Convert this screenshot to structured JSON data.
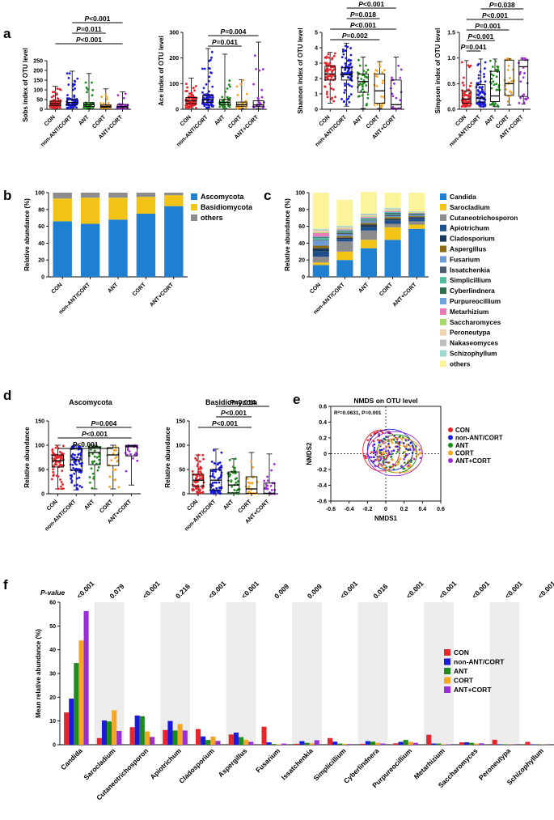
{
  "colors": {
    "CON": "#e8252a",
    "non-ANT/CORT": "#1a1adb",
    "ANT": "#1f8b1f",
    "CORT": "#f5a623",
    "ANT+CORT": "#9b2fd6"
  },
  "groups": [
    "CON",
    "non-ANT/CORT",
    "ANT",
    "CORT",
    "ANT+CORT"
  ],
  "panel_labels": {
    "a": "a",
    "b": "b",
    "c": "c",
    "d": "d",
    "e": "e",
    "f": "f"
  },
  "chart_data": [
    {
      "id": "a1",
      "type": "box",
      "ylabel": "Sobs index of OTU level",
      "ylim": [
        0,
        250
      ],
      "yticks": [
        "0",
        "50",
        "100",
        "150",
        "200",
        "250"
      ],
      "boxes": [
        {
          "min": 3,
          "q1": 18,
          "med": 28,
          "q3": 42,
          "max": 118
        },
        {
          "min": 5,
          "q1": 22,
          "med": 35,
          "q3": 50,
          "max": 196
        },
        {
          "min": 3,
          "q1": 14,
          "med": 23,
          "q3": 34,
          "max": 184
        },
        {
          "min": 3,
          "q1": 10,
          "med": 15,
          "q3": 22,
          "max": 105
        },
        {
          "min": 2,
          "q1": 8,
          "med": 14,
          "q3": 25,
          "max": 90
        }
      ],
      "sig": [
        {
          "text": "P<0.001",
          "from": 1,
          "to": 4
        },
        {
          "text": "P=0.011",
          "from": 1,
          "to": 3
        },
        {
          "text": "P<0.001",
          "from": 0,
          "to": 4
        }
      ]
    },
    {
      "id": "a2",
      "type": "box",
      "ylabel": "Ace index of OTU level",
      "ylim": [
        0,
        300
      ],
      "yticks": [
        "0",
        "100",
        "200",
        "300"
      ],
      "boxes": [
        {
          "min": 5,
          "q1": 22,
          "med": 33,
          "q3": 46,
          "max": 122
        },
        {
          "min": 5,
          "q1": 26,
          "med": 37,
          "q3": 55,
          "max": 237
        },
        {
          "min": 4,
          "q1": 17,
          "med": 27,
          "q3": 38,
          "max": 215
        },
        {
          "min": 3,
          "q1": 12,
          "med": 18,
          "q3": 28,
          "max": 115
        },
        {
          "min": 2,
          "q1": 10,
          "med": 17,
          "q3": 33,
          "max": 262
        }
      ],
      "sig": [
        {
          "text": "P=0.004",
          "from": 1,
          "to": 4
        },
        {
          "text": "P=0.041",
          "from": 1,
          "to": 3
        }
      ]
    },
    {
      "id": "a3",
      "type": "box",
      "ylabel": "Shannon index of OTU level",
      "ylim": [
        0,
        5
      ],
      "yticks": [
        "0",
        "1",
        "2",
        "3",
        "4",
        "5"
      ],
      "boxes": [
        {
          "min": 0.4,
          "q1": 1.9,
          "med": 2.3,
          "q3": 2.8,
          "max": 3.7
        },
        {
          "min": 0.2,
          "q1": 1.9,
          "med": 2.25,
          "q3": 2.7,
          "max": 4.3
        },
        {
          "min": 0.05,
          "q1": 1.1,
          "med": 1.8,
          "q3": 2.3,
          "max": 3.4
        },
        {
          "min": 0.05,
          "q1": 0.4,
          "med": 1.2,
          "q3": 2.3,
          "max": 3.1
        },
        {
          "min": 0.02,
          "q1": 0.05,
          "med": 0.3,
          "q3": 1.9,
          "max": 3.4
        }
      ],
      "sig": [
        {
          "text": "P<0.001",
          "from": 1,
          "to": 4
        },
        {
          "text": "P=0.018",
          "from": 1,
          "to": 3
        },
        {
          "text": "P<0.001",
          "from": 0,
          "to": 4
        },
        {
          "text": "P=0.002",
          "from": 0,
          "to": 3
        }
      ]
    },
    {
      "id": "a4",
      "type": "box",
      "ylabel": "Simpson index of OTU level",
      "ylim": [
        0,
        1.5
      ],
      "yticks": [
        "0.0",
        "0.5",
        "1.0",
        "1.5"
      ],
      "boxes": [
        {
          "min": 0.05,
          "q1": 0.12,
          "med": 0.2,
          "q3": 0.36,
          "max": 0.95
        },
        {
          "min": 0.05,
          "q1": 0.14,
          "med": 0.22,
          "q3": 0.48,
          "max": 0.98
        },
        {
          "min": 0.05,
          "q1": 0.15,
          "med": 0.26,
          "q3": 0.74,
          "max": 0.98
        },
        {
          "min": 0.08,
          "q1": 0.27,
          "med": 0.5,
          "q3": 0.96,
          "max": 0.99
        },
        {
          "min": 0.1,
          "q1": 0.25,
          "med": 0.83,
          "q3": 0.96,
          "max": 1.0
        }
      ],
      "sig": [
        {
          "text": "P=0.038",
          "from": 1,
          "to": 4
        },
        {
          "text": "P<0.001",
          "from": 0,
          "to": 4
        },
        {
          "text": "P=0.001",
          "from": 0,
          "to": 3
        },
        {
          "text": "P<0.001",
          "from": 0,
          "to": 2
        },
        {
          "text": "P=0.041",
          "from": 0,
          "to": 1
        }
      ]
    },
    {
      "id": "b",
      "type": "stacked-bar",
      "ylabel": "Relative abundance (%)",
      "ylim": [
        0,
        100
      ],
      "yticks": [
        "0",
        "20",
        "40",
        "60",
        "80",
        "100"
      ],
      "categories": [
        "CON",
        "non-ANT/CORT",
        "ANT",
        "CORT",
        "ANT+CORT"
      ],
      "series": [
        {
          "name": "Ascomycota",
          "color": "#1f7fd1",
          "values": [
            66,
            63,
            68,
            75,
            84
          ]
        },
        {
          "name": "Basidiomycota",
          "color": "#f2c418",
          "values": [
            27,
            31,
            26,
            20,
            13
          ]
        },
        {
          "name": "others",
          "color": "#8c8c8c",
          "values": [
            7,
            6,
            6,
            5,
            3
          ]
        }
      ]
    },
    {
      "id": "c",
      "type": "stacked-bar",
      "ylabel": "Relative abundance (%)",
      "ylim": [
        0,
        100
      ],
      "yticks": [
        "0",
        "20",
        "40",
        "60",
        "80",
        "100"
      ],
      "categories": [
        "CON",
        "non-ANT/CORT",
        "ANT",
        "CORT",
        "ANT+CORT"
      ],
      "series": [
        {
          "name": "Candida",
          "color": "#1f7fd1",
          "values": [
            14,
            20,
            34,
            44,
            57
          ]
        },
        {
          "name": "Sarocladium",
          "color": "#f2c418",
          "values": [
            3,
            10,
            10,
            15,
            5
          ]
        },
        {
          "name": "Cutaneotrichosporon",
          "color": "#8c8c8c",
          "values": [
            7,
            12,
            11,
            4,
            4
          ]
        },
        {
          "name": "Apiotrichum",
          "color": "#1e4f8c",
          "values": [
            6,
            3,
            4,
            4,
            3
          ]
        },
        {
          "name": "Cladosporium",
          "color": "#1a3a5c",
          "values": [
            4,
            1.5,
            3,
            2,
            2
          ]
        },
        {
          "name": "Aspergillus",
          "color": "#8a6d14",
          "values": [
            3,
            2,
            2,
            2,
            1
          ]
        },
        {
          "name": "Fusarium",
          "color": "#6f9bd4",
          "values": [
            6,
            2,
            2,
            1,
            1
          ]
        },
        {
          "name": "Issatchenkia",
          "color": "#4c5d73",
          "values": [
            1,
            2,
            1,
            2,
            1
          ]
        },
        {
          "name": "Simplicillium",
          "color": "#4fbf9f",
          "values": [
            2,
            1,
            1,
            1,
            0.5
          ]
        },
        {
          "name": "Cyberlindnera",
          "color": "#2b6f4f",
          "values": [
            1,
            1,
            1,
            1,
            0.5
          ]
        },
        {
          "name": "Purpureocillium",
          "color": "#6fa2d8",
          "values": [
            1,
            1,
            1,
            1,
            0.5
          ]
        },
        {
          "name": "Metarhizium",
          "color": "#e87ab6",
          "values": [
            4,
            1,
            1,
            1,
            0.5
          ]
        },
        {
          "name": "Saccharomyces",
          "color": "#a9d96c",
          "values": [
            1,
            1,
            1,
            1,
            0.5
          ]
        },
        {
          "name": "Peroneutypa",
          "color": "#f0d2b0",
          "values": [
            2,
            1,
            1,
            1,
            0.5
          ]
        },
        {
          "name": "Nakaseomyces",
          "color": "#bfbfbf",
          "values": [
            1,
            1,
            1,
            1,
            0.5
          ]
        },
        {
          "name": "Schizophyllum",
          "color": "#9fd9d0",
          "values": [
            1,
            1,
            1,
            1,
            0.5
          ]
        },
        {
          "name": "others",
          "color": "#fbf49a",
          "values": [
            43,
            31,
            26,
            18,
            22
          ]
        }
      ]
    },
    {
      "id": "d1",
      "type": "box",
      "title": "Ascomycota",
      "ylabel": "Relative abundance",
      "ylim": [
        0,
        150
      ],
      "yticks": [
        "0",
        "50",
        "100",
        "150"
      ],
      "boxes": [
        {
          "min": 10,
          "q1": 55,
          "med": 68,
          "q3": 80,
          "max": 100
        },
        {
          "min": 8,
          "q1": 48,
          "med": 70,
          "q3": 92,
          "max": 100
        },
        {
          "min": 10,
          "q1": 60,
          "med": 85,
          "q3": 96,
          "max": 100
        },
        {
          "min": 10,
          "q1": 58,
          "med": 80,
          "q3": 95,
          "max": 100
        },
        {
          "min": 18,
          "q1": 78,
          "med": 97,
          "q3": 99,
          "max": 100
        }
      ],
      "sig": [
        {
          "text": "P=0.004",
          "from": 1,
          "to": 4
        },
        {
          "text": "P<0.001",
          "from": 0,
          "to": 4
        },
        {
          "text": "P<0.001",
          "from": 0,
          "to": 3
        }
      ]
    },
    {
      "id": "d2",
      "type": "box",
      "title": "Basidiomycota",
      "ylabel": "Relative abundance",
      "ylim": [
        0,
        150
      ],
      "yticks": [
        "0",
        "50",
        "100",
        "150"
      ],
      "boxes": [
        {
          "min": 0,
          "q1": 15,
          "med": 28,
          "q3": 40,
          "max": 80
        },
        {
          "min": 0,
          "q1": 8,
          "med": 28,
          "q3": 50,
          "max": 92
        },
        {
          "min": 0,
          "q1": 2,
          "med": 18,
          "q3": 45,
          "max": 72
        },
        {
          "min": 0,
          "q1": 1,
          "med": 10,
          "q3": 35,
          "max": 85
        },
        {
          "min": 0,
          "q1": 0,
          "med": 1,
          "q3": 22,
          "max": 82
        }
      ],
      "sig": [
        {
          "text": "P=0.014",
          "from": 1,
          "to": 4
        },
        {
          "text": "P<0.001",
          "from": 1,
          "to": 3
        },
        {
          "text": "P<0.001",
          "from": 0,
          "to": 3
        }
      ]
    },
    {
      "id": "e",
      "type": "scatter",
      "title": "NMDS on OTU level",
      "xlabel": "NMDS1",
      "ylabel": "NMDS2",
      "xlim": [
        -0.6,
        0.6
      ],
      "ylim": [
        -0.6,
        0.6
      ],
      "xticks": [
        "-0.6",
        "-0.4",
        "-0.2",
        "0",
        "0.2",
        "0.4",
        "0.6"
      ],
      "yticks": [
        "-0.6",
        "-0.4",
        "-0.2",
        "0",
        "0.2",
        "0.4",
        "0.6"
      ],
      "stat": "R²=0.0631, P=0.001",
      "ellipses": [
        {
          "group": "CON",
          "cx": -0.05,
          "cy": 0.04,
          "rx": 0.2,
          "ry": 0.26
        },
        {
          "group": "non-ANT/CORT",
          "cx": 0.05,
          "cy": 0.05,
          "rx": 0.25,
          "ry": 0.26
        },
        {
          "group": "ANT",
          "cx": 0.12,
          "cy": 0.0,
          "rx": 0.22,
          "ry": 0.24
        },
        {
          "group": "CORT",
          "cx": 0.15,
          "cy": -0.02,
          "rx": 0.25,
          "ry": 0.22
        },
        {
          "group": "ANT+CORT",
          "cx": 0.1,
          "cy": 0.0,
          "rx": 0.3,
          "ry": 0.28
        }
      ]
    },
    {
      "id": "f",
      "type": "grouped-bar",
      "ylabel": "Mean relative abundance (%)",
      "ylim": [
        0,
        60
      ],
      "yticks": [
        "0",
        "10",
        "20",
        "30",
        "40",
        "50",
        "60"
      ],
      "pvalue_label": "P-value",
      "categories": [
        "Candida",
        "Sarocladium",
        "Cutaneotrichosporon",
        "Apiotrichum",
        "Cladosporium",
        "Aspergillus",
        "Fusarium",
        "Issatchenkia",
        "Simplicillium",
        "Cyberlindnera",
        "Purpureocillium",
        "Metarhizium",
        "Saccharomyces",
        "Peroneutypa",
        "Schizophyllum"
      ],
      "pvalues": [
        "<0.001",
        "0.079",
        "<0.001",
        "0.216",
        "<0.001",
        "<0.001",
        "0.009",
        "0.009",
        "<0.001",
        "0.016",
        "<0.001",
        "<0.001",
        "<0.001",
        "<0.001",
        "<0.001"
      ],
      "series": [
        {
          "name": "CON",
          "values": [
            13.6,
            2.8,
            7.4,
            6.2,
            6.6,
            4.3,
            7.6,
            0.4,
            2.8,
            0.4,
            0.6,
            4.2,
            1.0,
            2.1,
            1.2
          ]
        },
        {
          "name": "non-ANT/CORT",
          "values": [
            19.4,
            10.2,
            12.3,
            10.0,
            3.5,
            5.1,
            1.0,
            1.5,
            1.3,
            1.5,
            1.2,
            0.5,
            1.0,
            0.2,
            0.2
          ]
        },
        {
          "name": "ANT",
          "values": [
            34.4,
            9.8,
            12.0,
            6.0,
            2.0,
            3.2,
            0.3,
            0.8,
            0.5,
            1.3,
            2.0,
            0.5,
            0.8,
            0.2,
            0.1
          ]
        },
        {
          "name": "CORT",
          "values": [
            43.9,
            14.5,
            5.6,
            8.7,
            3.4,
            2.1,
            0.2,
            0.6,
            0.4,
            0.8,
            1.2,
            0.2,
            0.5,
            0.1,
            0.1
          ]
        },
        {
          "name": "ANT+CORT",
          "values": [
            56.3,
            5.8,
            3.3,
            6.0,
            1.6,
            1.2,
            0.5,
            1.9,
            0.3,
            0.5,
            0.8,
            0.2,
            0.6,
            0.1,
            0.1
          ]
        }
      ]
    }
  ]
}
